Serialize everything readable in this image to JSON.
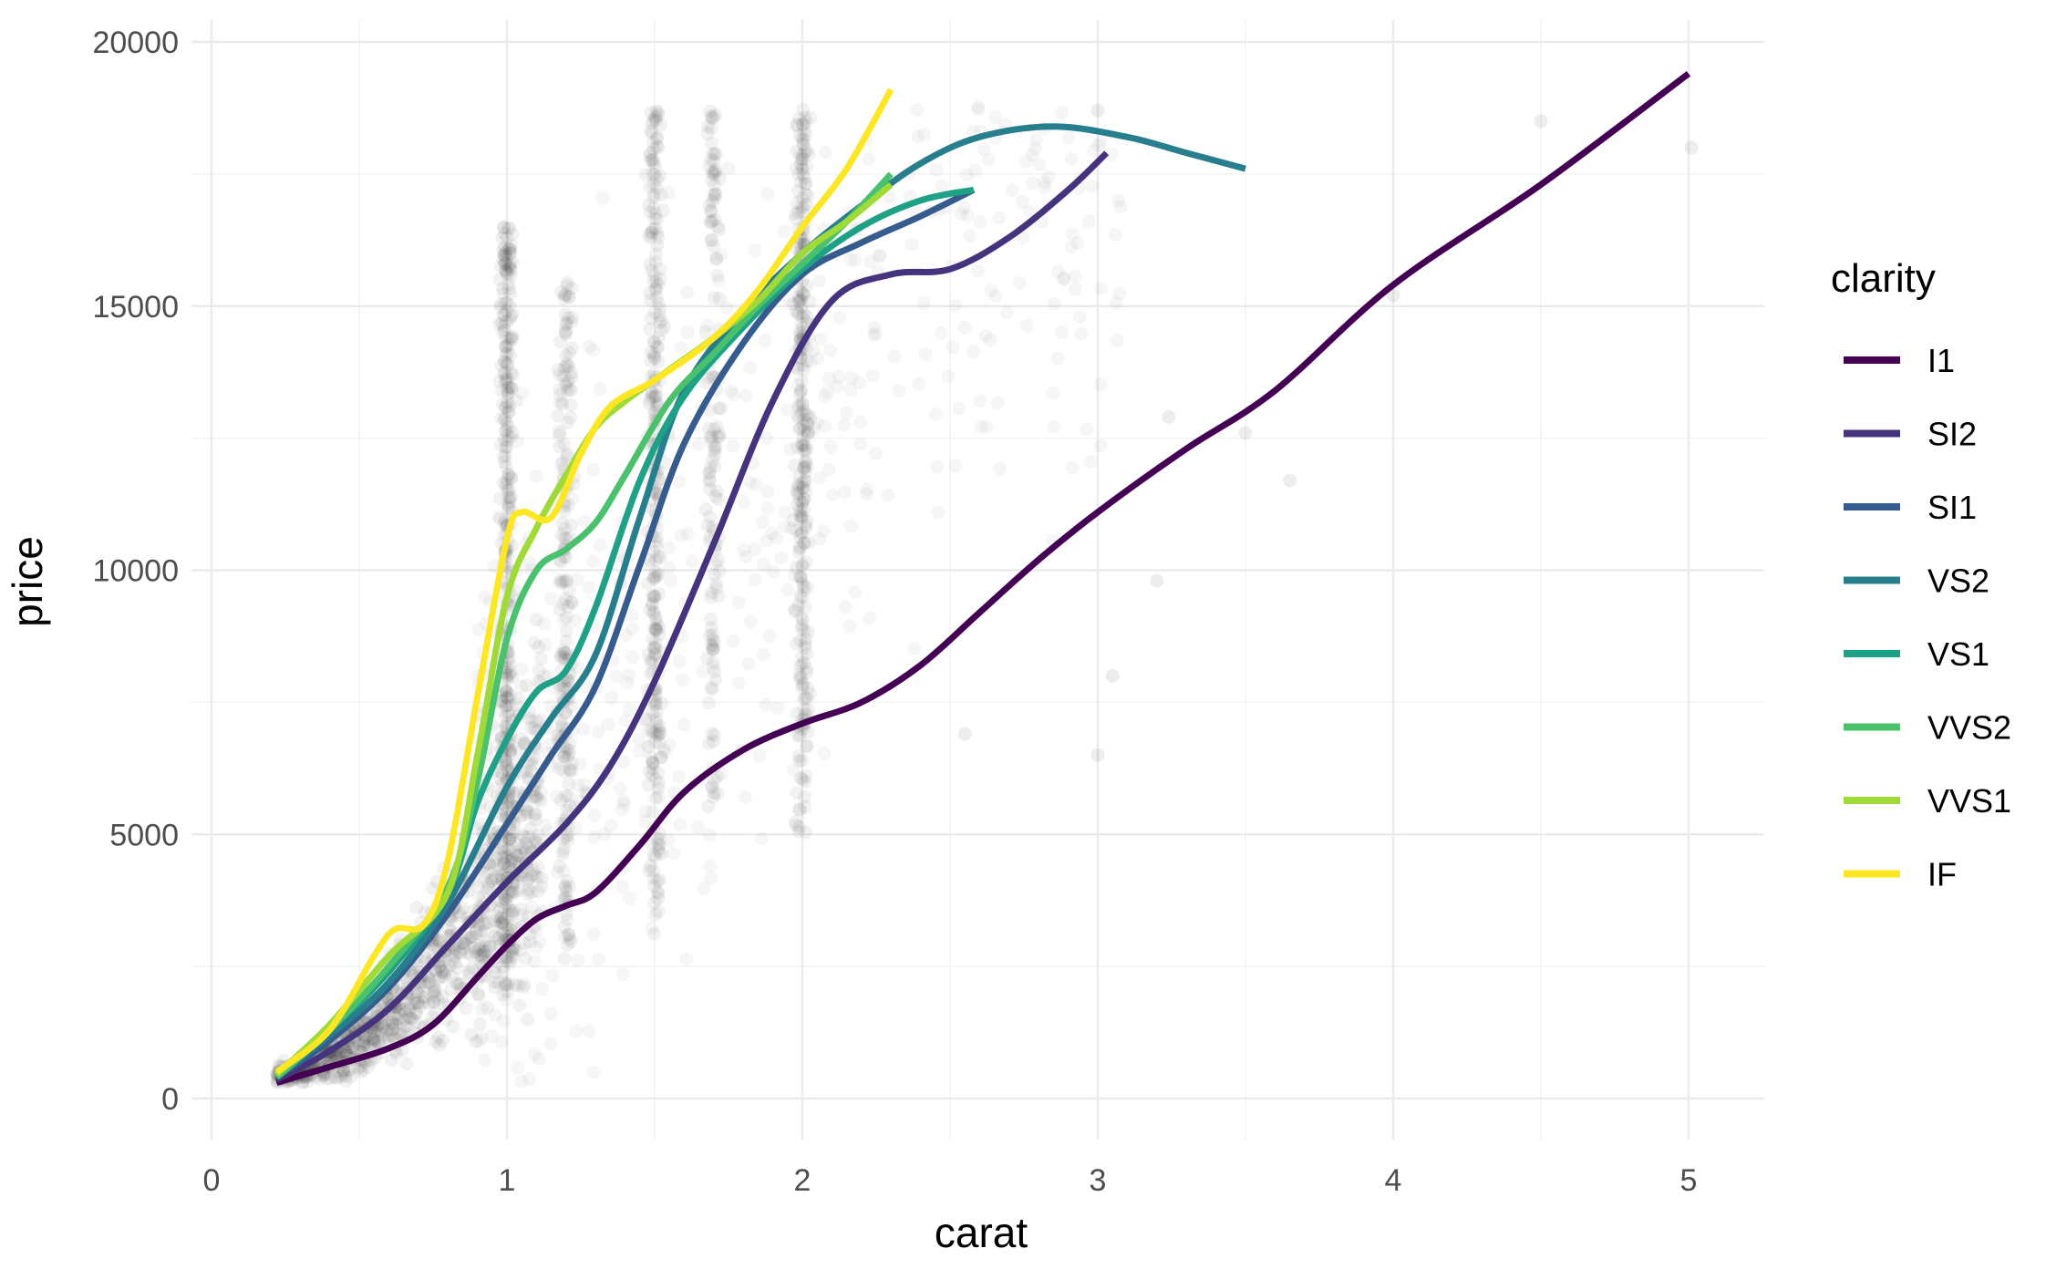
{
  "chart_data": {
    "type": "line",
    "title": "",
    "xlabel": "carat",
    "ylabel": "price",
    "xlim": [
      0,
      5.2
    ],
    "ylim": [
      -700,
      20400
    ],
    "x_ticks": [
      {
        "value": 0,
        "label": "0"
      },
      {
        "value": 1,
        "label": "1"
      },
      {
        "value": 2,
        "label": "2"
      },
      {
        "value": 3,
        "label": "3"
      },
      {
        "value": 4,
        "label": "4"
      },
      {
        "value": 5,
        "label": "5"
      }
    ],
    "y_ticks": [
      {
        "value": 0,
        "label": "0"
      },
      {
        "value": 5000,
        "label": "5000"
      },
      {
        "value": 10000,
        "label": "10000"
      },
      {
        "value": 15000,
        "label": "15000"
      },
      {
        "value": 20000,
        "label": "20000"
      }
    ],
    "grid": true,
    "background_points": "scatter of individual diamonds (carat vs price), drawn with low opacity",
    "legend": {
      "title": "clarity",
      "placement": "right"
    },
    "series": [
      {
        "name": "I1",
        "color": "#440154",
        "x": [
          0.22,
          0.4,
          0.6,
          0.75,
          0.9,
          1.0,
          1.1,
          1.2,
          1.3,
          1.45,
          1.6,
          1.8,
          2.0,
          2.2,
          2.4,
          2.6,
          2.8,
          3.0,
          3.3,
          3.6,
          4.0,
          4.5,
          5.0
        ],
        "y": [
          300,
          600,
          950,
          1400,
          2300,
          2900,
          3400,
          3650,
          3900,
          4800,
          5800,
          6600,
          7100,
          7500,
          8200,
          9200,
          10200,
          11100,
          12300,
          13400,
          15400,
          17300,
          19400
        ]
      },
      {
        "name": "SI2",
        "color": "#46337e",
        "x": [
          0.22,
          0.4,
          0.6,
          0.8,
          1.0,
          1.2,
          1.35,
          1.5,
          1.7,
          1.9,
          2.1,
          2.3,
          2.5,
          2.7,
          2.9,
          3.03
        ],
        "y": [
          350,
          900,
          1700,
          2900,
          4100,
          5200,
          6300,
          7900,
          10500,
          13200,
          15100,
          15600,
          15700,
          16300,
          17200,
          17900
        ]
      },
      {
        "name": "SI1",
        "color": "#365c8d",
        "x": [
          0.22,
          0.4,
          0.6,
          0.8,
          1.0,
          1.15,
          1.3,
          1.45,
          1.6,
          1.8,
          2.0,
          2.2,
          2.4,
          2.58
        ],
        "y": [
          400,
          1100,
          2100,
          3500,
          5200,
          6500,
          7800,
          10100,
          12400,
          14300,
          15600,
          16200,
          16700,
          17200
        ]
      },
      {
        "name": "VS2",
        "color": "#277f8e",
        "x": [
          0.22,
          0.4,
          0.6,
          0.8,
          1.0,
          1.15,
          1.3,
          1.45,
          1.6,
          1.8,
          2.0,
          2.2,
          2.4,
          2.6,
          2.85,
          3.1,
          3.3,
          3.5
        ],
        "y": [
          400,
          1200,
          2200,
          3700,
          5900,
          7200,
          8400,
          11000,
          13400,
          14900,
          16000,
          16900,
          17700,
          18200,
          18400,
          18200,
          17900,
          17600
        ]
      },
      {
        "name": "VS1",
        "color": "#1fa187",
        "x": [
          0.22,
          0.4,
          0.6,
          0.8,
          0.9,
          1.0,
          1.1,
          1.2,
          1.3,
          1.45,
          1.6,
          1.8,
          2.0,
          2.2,
          2.4,
          2.58
        ],
        "y": [
          400,
          1300,
          2400,
          3900,
          5600,
          6800,
          7700,
          8100,
          9300,
          11700,
          13300,
          14600,
          15700,
          16500,
          17000,
          17200
        ]
      },
      {
        "name": "VVS2",
        "color": "#4ac16d",
        "x": [
          0.22,
          0.4,
          0.6,
          0.8,
          0.9,
          1.0,
          1.1,
          1.2,
          1.3,
          1.4,
          1.55,
          1.7,
          1.85,
          2.0,
          2.15,
          2.3
        ],
        "y": [
          400,
          1300,
          2500,
          4000,
          6000,
          8700,
          10000,
          10400,
          10900,
          11800,
          13200,
          14100,
          15000,
          15800,
          16600,
          17500
        ]
      },
      {
        "name": "VVS1",
        "color": "#a0da39",
        "x": [
          0.22,
          0.4,
          0.6,
          0.8,
          0.9,
          1.0,
          1.1,
          1.2,
          1.3,
          1.4,
          1.55,
          1.7,
          1.85,
          2.0,
          2.15,
          2.3
        ],
        "y": [
          450,
          1400,
          2700,
          3900,
          6500,
          9500,
          10800,
          11800,
          12700,
          13200,
          13800,
          14400,
          15100,
          16000,
          16600,
          17300
        ]
      },
      {
        "name": "IF",
        "color": "#fde725",
        "x": [
          0.22,
          0.4,
          0.55,
          0.62,
          0.72,
          0.8,
          0.9,
          1.0,
          1.05,
          1.15,
          1.25,
          1.35,
          1.5,
          1.7,
          1.85,
          2.0,
          2.15,
          2.3
        ],
        "y": [
          500,
          1300,
          2700,
          3200,
          3300,
          4500,
          7600,
          10600,
          11100,
          11000,
          12200,
          13100,
          13600,
          14400,
          15300,
          16500,
          17600,
          19100
        ]
      }
    ]
  }
}
